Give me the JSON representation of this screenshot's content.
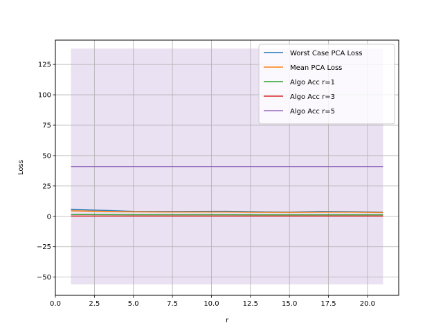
{
  "chart_data": {
    "type": "line",
    "title": "",
    "xlabel": "r",
    "ylabel": "Loss",
    "xlim": [
      0.0,
      22.0
    ],
    "ylim": [
      -65,
      145
    ],
    "xticks": [
      0.0,
      2.5,
      5.0,
      7.5,
      10.0,
      12.5,
      15.0,
      17.5,
      20.0
    ],
    "xtick_labels": [
      "0.0",
      "2.5",
      "5.0",
      "7.5",
      "10.0",
      "12.5",
      "15.0",
      "17.5",
      "20.0"
    ],
    "yticks": [
      -50,
      -25,
      0,
      25,
      50,
      75,
      100,
      125
    ],
    "ytick_labels": [
      "−50",
      "−25",
      "0",
      "25",
      "50",
      "75",
      "100",
      "125"
    ],
    "grid": true,
    "legend_position": "top-right",
    "x": [
      1,
      3,
      5,
      7,
      9,
      11,
      13,
      15,
      17,
      19,
      21
    ],
    "series": [
      {
        "name": "Worst Case PCA Loss",
        "color": "#1f77b4",
        "values": [
          5.8,
          4.9,
          4.0,
          3.9,
          4.0,
          4.1,
          3.7,
          3.5,
          3.9,
          3.8,
          3.4
        ],
        "band": {
          "lower": [
            5.0,
            4.4,
            3.6,
            3.6,
            3.6,
            3.7,
            3.4,
            3.2,
            3.5,
            3.5,
            3.1
          ],
          "upper": [
            6.6,
            5.4,
            4.4,
            4.2,
            4.4,
            4.5,
            4.0,
            3.8,
            4.3,
            4.1,
            3.7
          ]
        }
      },
      {
        "name": "Mean PCA Loss",
        "color": "#ff7f0e",
        "values": [
          4.5,
          4.1,
          3.7,
          3.6,
          3.6,
          3.6,
          3.3,
          3.2,
          3.4,
          3.4,
          3.1
        ]
      },
      {
        "name": "Algo Acc r=1",
        "color": "#2ca02c",
        "values": [
          1.5,
          1.4,
          1.3,
          1.3,
          1.3,
          1.3,
          1.2,
          1.2,
          1.2,
          1.2,
          1.2
        ]
      },
      {
        "name": "Algo Acc r=3",
        "color": "#d62728",
        "values": [
          0.2,
          0.2,
          0.2,
          0.2,
          0.2,
          0.2,
          0.2,
          0.2,
          0.2,
          0.2,
          0.2
        ]
      },
      {
        "name": "Algo Acc r=5",
        "color": "#9467bd",
        "values": [
          41,
          41,
          41,
          41,
          41,
          41,
          41,
          41,
          41,
          41,
          41
        ],
        "band": {
          "lower": [
            -56,
            -56,
            -56,
            -56,
            -56,
            -56,
            -56,
            -56,
            -56,
            -56,
            -56
          ],
          "upper": [
            138,
            138,
            138,
            138,
            138,
            138,
            138,
            138,
            138,
            138,
            138
          ]
        }
      }
    ]
  }
}
